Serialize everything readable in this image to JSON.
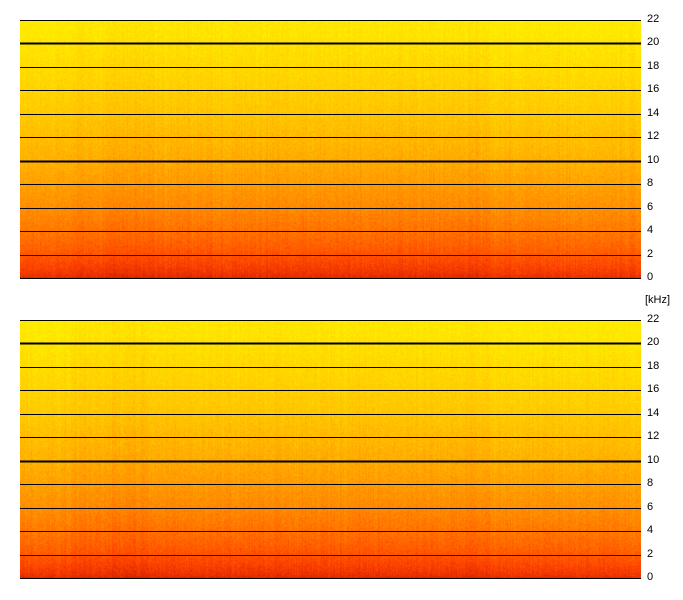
{
  "chart_data": [
    {
      "type": "heatmap",
      "title": "",
      "xlabel": "",
      "ylabel": "[kHz]",
      "ylim": [
        0,
        22
      ],
      "yticks": [
        0,
        2,
        4,
        6,
        8,
        10,
        12,
        14,
        16,
        18,
        20,
        22
      ],
      "ytick_labels": [
        "0",
        "2",
        "4",
        "6",
        "8",
        "10",
        "12",
        "14",
        "16",
        "18",
        "20",
        "22"
      ],
      "major_gridlines": [
        10,
        20
      ],
      "grid": true,
      "colormap": [
        "#cc1a00",
        "#ff4400",
        "#ff8800",
        "#ffc200",
        "#ffee00"
      ]
    },
    {
      "type": "heatmap",
      "title": "",
      "xlabel": "",
      "ylabel": "[kHz]",
      "ylim": [
        0,
        22
      ],
      "yticks": [
        0,
        2,
        4,
        6,
        8,
        10,
        12,
        14,
        16,
        18,
        20,
        22
      ],
      "ytick_labels": [
        "0",
        "2",
        "4",
        "6",
        "8",
        "10",
        "12",
        "14",
        "16",
        "18",
        "20",
        "22"
      ],
      "major_gridlines": [
        10,
        20
      ],
      "grid": true,
      "colormap": [
        "#cc1a00",
        "#ff4400",
        "#ff8800",
        "#ffc200",
        "#ffee00"
      ]
    }
  ],
  "unit_label": "[kHz]"
}
